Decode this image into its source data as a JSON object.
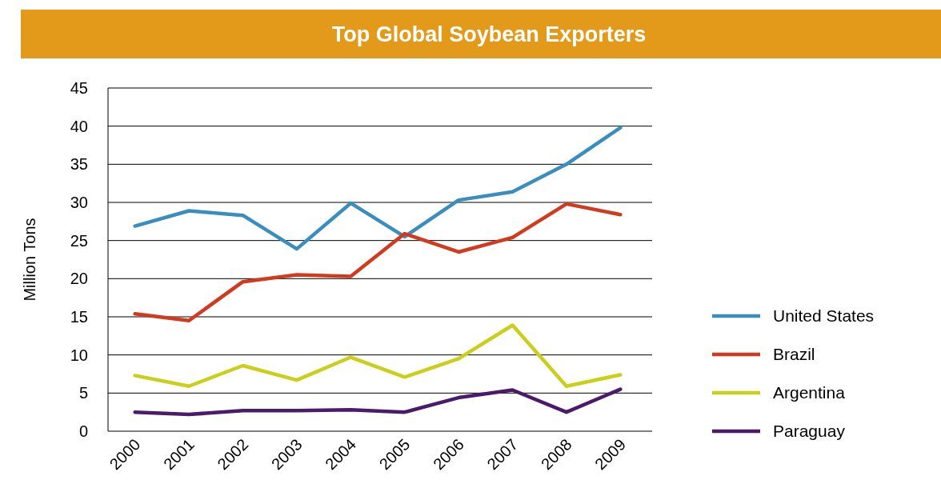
{
  "chart_data": {
    "type": "line",
    "title": "Top Global Soybean Exporters",
    "ylabel": "Million Tons",
    "categories": [
      "2000",
      "2001",
      "2002",
      "2003",
      "2004",
      "2005",
      "2006",
      "2007",
      "2008",
      "2009"
    ],
    "series": [
      {
        "name": "United States",
        "color": "#3a8dbf",
        "values": [
          26.9,
          28.9,
          28.3,
          23.9,
          29.9,
          25.5,
          30.3,
          31.4,
          35.0,
          39.8
        ]
      },
      {
        "name": "Brazil",
        "color": "#d03a1e",
        "values": [
          15.4,
          14.5,
          19.6,
          20.5,
          20.3,
          25.9,
          23.5,
          25.4,
          29.8,
          28.4
        ]
      },
      {
        "name": "Argentina",
        "color": "#c9cf1a",
        "values": [
          7.3,
          5.9,
          8.6,
          6.7,
          9.7,
          7.1,
          9.5,
          13.9,
          5.9,
          7.4
        ]
      },
      {
        "name": "Paraguay",
        "color": "#4b1a6b",
        "values": [
          2.5,
          2.2,
          2.7,
          2.7,
          2.8,
          2.5,
          4.4,
          5.4,
          2.5,
          5.5
        ]
      }
    ],
    "ylim": [
      0,
      45
    ],
    "yticks": [
      0,
      5,
      10,
      15,
      20,
      25,
      30,
      35,
      40,
      45
    ],
    "grid": "y",
    "legend": "right",
    "marker": "none",
    "line_style": "solid"
  }
}
